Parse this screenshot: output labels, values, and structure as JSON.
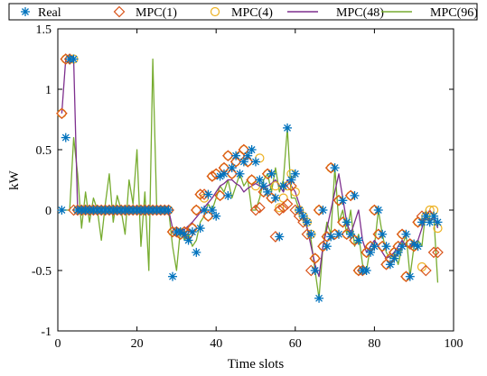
{
  "chart_data": {
    "type": "line",
    "xlabel": "Time slots",
    "ylabel": "kW",
    "xlim": [
      0,
      100
    ],
    "ylim": [
      -1,
      1.5
    ],
    "xticks": [
      0,
      20,
      40,
      60,
      80,
      100
    ],
    "yticks": [
      -1,
      -0.5,
      0,
      0.5,
      1,
      1.5
    ],
    "xtick_labels": [
      "0",
      "20",
      "40",
      "60",
      "80",
      "100"
    ],
    "ytick_labels": [
      "-1",
      "-0.5",
      "0",
      "0.5",
      "1",
      "1.5"
    ],
    "grid": false,
    "legend_position": "top",
    "series": [
      {
        "name": "Real",
        "color": "#0072BD",
        "marker": "asterisk",
        "line": false,
        "x": [
          1,
          2,
          3,
          4,
          5,
          6,
          7,
          8,
          9,
          10,
          11,
          12,
          13,
          14,
          15,
          16,
          17,
          18,
          19,
          20,
          21,
          22,
          23,
          24,
          25,
          26,
          27,
          28,
          29,
          30,
          31,
          32,
          33,
          34,
          35,
          36,
          37,
          38,
          39,
          40,
          41,
          42,
          43,
          44,
          45,
          46,
          47,
          48,
          49,
          50,
          51,
          52,
          53,
          54,
          55,
          56,
          57,
          58,
          59,
          60,
          61,
          62,
          63,
          64,
          65,
          66,
          67,
          68,
          69,
          70,
          71,
          72,
          73,
          74,
          75,
          76,
          77,
          78,
          79,
          80,
          81,
          82,
          83,
          84,
          85,
          86,
          87,
          88,
          89,
          90,
          91,
          92,
          93,
          94,
          95,
          96
        ],
        "y": [
          0,
          0.6,
          1.25,
          1.25,
          0,
          0,
          0,
          0,
          0,
          0,
          0,
          0,
          0,
          0,
          0,
          0,
          0,
          0,
          0,
          0,
          0,
          0,
          0,
          0,
          0,
          0,
          0,
          0,
          -0.55,
          -0.18,
          -0.18,
          -0.2,
          -0.25,
          -0.18,
          -0.35,
          -0.15,
          0,
          0.13,
          0,
          -0.05,
          0.28,
          0.3,
          0.12,
          0.35,
          0.45,
          0.3,
          0.4,
          0.45,
          0.5,
          0.4,
          0.25,
          0.2,
          0.15,
          0.3,
          0.1,
          -0.22,
          0.2,
          0.68,
          0.25,
          0.3,
          0,
          -0.05,
          -0.1,
          -0.2,
          -0.5,
          -0.73,
          0,
          -0.3,
          -0.22,
          0.35,
          -0.2,
          0.08,
          -0.1,
          -0.2,
          0.12,
          -0.25,
          -0.5,
          -0.5,
          -0.35,
          -0.3,
          0,
          -0.2,
          -0.3,
          -0.45,
          -0.4,
          -0.35,
          -0.3,
          -0.2,
          -0.55,
          -0.28,
          -0.3,
          -0.1,
          -0.05,
          -0.1,
          -0.05,
          -0.1
        ]
      },
      {
        "name": "MPC(1)",
        "color": "#D95319",
        "marker": "diamond",
        "line": false,
        "x": [
          1,
          2,
          3,
          4,
          5,
          6,
          7,
          8,
          9,
          10,
          11,
          12,
          13,
          14,
          15,
          16,
          17,
          18,
          19,
          20,
          21,
          22,
          23,
          24,
          25,
          26,
          27,
          28,
          29,
          30,
          31,
          32,
          33,
          34,
          35,
          36,
          37,
          38,
          39,
          40,
          41,
          42,
          43,
          44,
          45,
          46,
          47,
          48,
          49,
          50,
          51,
          52,
          53,
          54,
          55,
          56,
          57,
          58,
          59,
          60,
          61,
          62,
          63,
          64,
          65,
          66,
          67,
          68,
          69,
          70,
          71,
          72,
          73,
          74,
          75,
          76,
          77,
          78,
          79,
          80,
          81,
          82,
          83,
          84,
          85,
          86,
          87,
          88,
          89,
          90,
          91,
          92,
          93,
          94,
          95,
          96
        ],
        "y": [
          0.8,
          1.25,
          1.25,
          0,
          0,
          0,
          0,
          0,
          0,
          0,
          0,
          0,
          0,
          0,
          0,
          0,
          0,
          0,
          0,
          0,
          0,
          0,
          0,
          0,
          0,
          0,
          0,
          0,
          -0.18,
          -0.18,
          -0.2,
          -0.18,
          -0.2,
          -0.15,
          0,
          0.13,
          0.13,
          -0.05,
          0.28,
          0.3,
          0.12,
          0.35,
          0.45,
          0.3,
          0.4,
          0.45,
          0.5,
          0.4,
          0.25,
          0,
          0.02,
          0.15,
          0.3,
          0.1,
          -0.22,
          0,
          0.02,
          0.05,
          0.2,
          0,
          -0.05,
          -0.1,
          -0.2,
          -0.5,
          -0.4,
          0,
          -0.3,
          -0.22,
          0.35,
          -0.2,
          0.08,
          -0.1,
          -0.2,
          0.12,
          -0.25,
          -0.5,
          -0.5,
          -0.35,
          -0.3,
          0,
          -0.2,
          -0.3,
          -0.45,
          -0.4,
          -0.35,
          -0.3,
          -0.2,
          -0.55,
          -0.28,
          -0.3,
          -0.1,
          -0.05,
          -0.5,
          -0.05,
          -0.35,
          -0.35
        ]
      },
      {
        "name": "MPC(4)",
        "color": "#EDB120",
        "marker": "circle",
        "line": false,
        "x": [
          1,
          2,
          3,
          4,
          5,
          6,
          7,
          8,
          9,
          10,
          11,
          12,
          13,
          14,
          15,
          16,
          17,
          18,
          19,
          20,
          21,
          22,
          23,
          24,
          25,
          26,
          27,
          28,
          29,
          30,
          31,
          32,
          33,
          34,
          35,
          36,
          37,
          38,
          39,
          40,
          41,
          42,
          43,
          44,
          45,
          46,
          47,
          48,
          49,
          50,
          51,
          52,
          53,
          54,
          55,
          56,
          57,
          58,
          59,
          60,
          61,
          62,
          63,
          64,
          65,
          66,
          67,
          68,
          69,
          70,
          71,
          72,
          73,
          74,
          75,
          76,
          77,
          78,
          79,
          80,
          81,
          82,
          83,
          84,
          85,
          86,
          87,
          88,
          89,
          90,
          91,
          92,
          93,
          94,
          95,
          96
        ],
        "y": [
          0.8,
          1.25,
          1.25,
          1.25,
          0,
          0,
          0,
          0,
          0,
          0,
          0,
          0,
          0,
          0,
          0,
          0,
          0,
          0,
          0,
          0,
          0,
          0,
          0,
          0,
          0,
          0,
          0,
          0,
          -0.18,
          -0.18,
          -0.2,
          -0.18,
          -0.2,
          -0.15,
          0,
          0.13,
          0.1,
          -0.05,
          0.28,
          0.3,
          0.12,
          0.35,
          0.45,
          0.3,
          0.4,
          0.45,
          0.5,
          0.4,
          0.25,
          0.2,
          0.43,
          0.15,
          0.3,
          0.1,
          0.2,
          0.02,
          0.1,
          0.2,
          0.3,
          0.15,
          0,
          -0.05,
          -0.1,
          -0.2,
          -0.4,
          0,
          -0.3,
          -0.22,
          0.35,
          -0.2,
          0.08,
          -0.1,
          -0.2,
          0.12,
          -0.25,
          -0.5,
          -0.5,
          -0.35,
          -0.3,
          0,
          -0.2,
          -0.3,
          -0.45,
          -0.4,
          -0.35,
          -0.3,
          -0.2,
          -0.55,
          -0.28,
          -0.3,
          -0.1,
          -0.47,
          -0.05,
          0,
          0,
          -0.15
        ]
      },
      {
        "name": "MPC(48)",
        "color": "#7E2F8E",
        "marker": "none",
        "line": true,
        "x": [
          1,
          2,
          3,
          4,
          5,
          6,
          7,
          8,
          9,
          10,
          11,
          12,
          13,
          14,
          15,
          16,
          17,
          18,
          19,
          20,
          21,
          22,
          23,
          24,
          25,
          26,
          27,
          28,
          29,
          30,
          31,
          32,
          33,
          34,
          35,
          36,
          37,
          38,
          39,
          40,
          41,
          42,
          43,
          44,
          45,
          46,
          47,
          48,
          49,
          50,
          51,
          52,
          53,
          54,
          55,
          56,
          57,
          58,
          59,
          60,
          61,
          62,
          63,
          64,
          65,
          66,
          67,
          68,
          69,
          70,
          71,
          72,
          73,
          74,
          75,
          76,
          77,
          78,
          79,
          80,
          81,
          82,
          83,
          84,
          85,
          86,
          87,
          88,
          89,
          90,
          91,
          92,
          93,
          94,
          95,
          96
        ],
        "y": [
          0.8,
          1.25,
          1.25,
          1.25,
          0,
          0,
          0,
          0,
          0,
          0,
          0,
          0,
          0,
          0,
          0,
          0,
          0,
          0,
          0,
          0,
          0,
          0,
          0,
          0,
          0,
          0,
          0,
          0,
          -0.15,
          -0.18,
          -0.18,
          -0.16,
          -0.13,
          -0.1,
          -0.06,
          -0.02,
          0.02,
          0.06,
          0.1,
          0.15,
          0.2,
          0.22,
          0.25,
          0.25,
          0.22,
          0.2,
          0.15,
          0.18,
          0.2,
          0.22,
          0.2,
          0.18,
          0.2,
          0.22,
          0.25,
          0.2,
          0.15,
          0.25,
          0.2,
          0.15,
          0.05,
          -0.05,
          -0.15,
          -0.3,
          -0.45,
          -0.55,
          -0.3,
          -0.15,
          0,
          0.15,
          0.3,
          0.1,
          -0.1,
          -0.2,
          -0.1,
          0,
          -0.25,
          -0.35,
          -0.3,
          -0.25,
          -0.3,
          -0.35,
          -0.4,
          -0.38,
          -0.35,
          -0.3,
          -0.25,
          -0.3,
          -0.3,
          -0.28,
          -0.25,
          -0.15,
          -0.05,
          0,
          -0.05,
          -0.15
        ]
      },
      {
        "name": "MPC(96)",
        "color": "#77AC30",
        "marker": "none",
        "line": true,
        "x": [
          1,
          2,
          3,
          4,
          5,
          6,
          7,
          8,
          9,
          10,
          11,
          12,
          13,
          14,
          15,
          16,
          17,
          18,
          19,
          20,
          21,
          22,
          23,
          24,
          25,
          26,
          27,
          28,
          29,
          30,
          31,
          32,
          33,
          34,
          35,
          36,
          37,
          38,
          39,
          40,
          41,
          42,
          43,
          44,
          45,
          46,
          47,
          48,
          49,
          50,
          51,
          52,
          53,
          54,
          55,
          56,
          57,
          58,
          59,
          60,
          61,
          62,
          63,
          64,
          65,
          66,
          67,
          68,
          69,
          70,
          71,
          72,
          73,
          74,
          75,
          76,
          77,
          78,
          79,
          80,
          81,
          82,
          83,
          84,
          85,
          86,
          87,
          88,
          89,
          90,
          91,
          92,
          93,
          94,
          95,
          96
        ],
        "y": [
          0,
          0,
          0,
          0.6,
          0.3,
          -0.15,
          0.15,
          -0.1,
          0.1,
          0,
          -0.25,
          0.05,
          0.3,
          -0.1,
          0.12,
          0,
          -0.2,
          0.25,
          0.05,
          0.5,
          -0.3,
          0.15,
          -0.5,
          1.25,
          0,
          0,
          0,
          0,
          -0.3,
          -0.5,
          -0.15,
          -0.25,
          -0.2,
          -0.3,
          -0.25,
          -0.1,
          -0.05,
          0.05,
          0,
          0.1,
          0.2,
          0.15,
          0.25,
          0.1,
          0.2,
          0.3,
          0.2,
          0.25,
          0,
          0,
          0.1,
          0.25,
          0.3,
          0.15,
          0.35,
          0.15,
          0.25,
          0.68,
          0.1,
          0.1,
          0,
          -0.05,
          -0.15,
          -0.25,
          -0.5,
          -0.73,
          -0.3,
          -0.1,
          -0.2,
          0.35,
          -0.1,
          0,
          -0.2,
          0,
          -0.3,
          -0.2,
          -0.45,
          -0.5,
          -0.3,
          -0.3,
          0,
          -0.2,
          -0.35,
          -0.4,
          -0.35,
          -0.45,
          -0.3,
          -0.2,
          -0.55,
          -0.3,
          -0.25,
          -0.3,
          0,
          -0.1,
          -0.05,
          -0.6
        ]
      }
    ]
  }
}
